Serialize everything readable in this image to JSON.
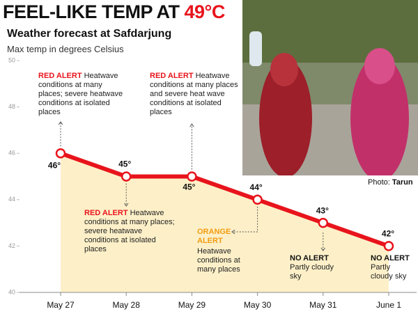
{
  "headline": {
    "text": "FEEL-LIKE TEMP AT",
    "highlight": "49°C"
  },
  "photo_credit": {
    "label": "Photo:",
    "name": "Tarun"
  },
  "chart_data": {
    "type": "line",
    "title": "Weather forecast at Safdarjung",
    "subtitle": "Max temp in degrees Celsius",
    "categories": [
      "May 27",
      "May 28",
      "May 29",
      "May 30",
      "May 31",
      "June 1"
    ],
    "values": [
      46,
      45,
      45,
      44,
      43,
      42
    ],
    "value_labels": [
      "46°",
      "45°",
      "45°",
      "44°",
      "43°",
      "42°"
    ],
    "color": "#e8141c",
    "area_color": "#fdf0c8",
    "ylim": [
      40,
      50
    ],
    "yticks": [
      40,
      42,
      44,
      46,
      48,
      50
    ],
    "annotations": [
      {
        "alert": "RED ALERT",
        "color": "#e8141c",
        "text": "Heatwave conditions at many places; severe heatwave conditions at isolated places"
      },
      {
        "alert": "RED ALERT",
        "color": "#e8141c",
        "text": "Heatwave conditions at many places; severe heatwave conditions at isolated places"
      },
      {
        "alert": "RED ALERT",
        "color": "#e8141c",
        "text": "Heatwave conditions at many places and severe heat wave conditions at isolated places"
      },
      {
        "alert": "ORANGE ALERT",
        "color": "#f39c12",
        "text": "Heatwave conditions at many places"
      },
      {
        "alert": "NO ALERT",
        "color": "#111111",
        "text": "Partly cloudy sky"
      },
      {
        "alert": "NO ALERT",
        "color": "#111111",
        "text": "Partly cloudy sky"
      }
    ]
  }
}
